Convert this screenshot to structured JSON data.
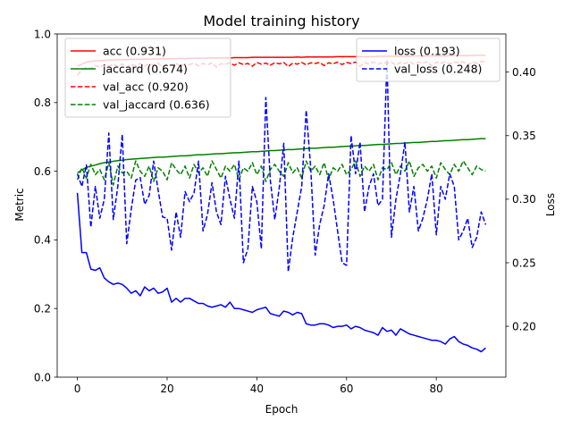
{
  "chart_data": {
    "type": "line",
    "title": "Model training history",
    "xlabel": "Epoch",
    "ylabel": "Metric",
    "ylabel_right": "Loss",
    "xlim": [
      -4.5,
      95.5
    ],
    "ylim": [
      0.0,
      1.0
    ],
    "ylim_right": [
      0.16,
      0.43
    ],
    "x_ticks": [
      0,
      20,
      40,
      60,
      80
    ],
    "y_ticks": [
      0.0,
      0.2,
      0.4,
      0.6,
      0.8,
      1.0
    ],
    "y_tick_labels": [
      "0.0",
      "0.2",
      "0.4",
      "0.6",
      "0.8",
      "1.0"
    ],
    "y_ticks_right": [
      0.2,
      0.25,
      0.3,
      0.35,
      0.4
    ],
    "y_tick_labels_right": [
      "0.20",
      "0.25",
      "0.30",
      "0.35",
      "0.40"
    ],
    "grid": false,
    "legend_left": {
      "placement": "upper-left",
      "entries": [
        "acc (0.931)",
        "jaccard (0.674)",
        "val_acc (0.920)",
        "val_jaccard (0.636)"
      ]
    },
    "legend_right": {
      "placement": "upper-right",
      "entries": [
        "loss (0.193)",
        "val_loss (0.248)"
      ]
    },
    "series": [
      {
        "name": "acc (0.931)",
        "axis": "left",
        "color": "#ff0000",
        "style": "solid",
        "values": [
          0.906,
          0.912,
          0.918,
          0.92,
          0.922,
          0.922,
          0.923,
          0.924,
          0.924,
          0.925,
          0.925,
          0.925,
          0.926,
          0.926,
          0.926,
          0.927,
          0.926,
          0.927,
          0.927,
          0.928,
          0.927,
          0.928,
          0.928,
          0.929,
          0.928,
          0.929,
          0.929,
          0.929,
          0.929,
          0.93,
          0.93,
          0.93,
          0.93,
          0.93,
          0.93,
          0.931,
          0.931,
          0.931,
          0.931,
          0.932,
          0.932,
          0.932,
          0.932,
          0.932,
          0.932,
          0.932,
          0.932,
          0.932,
          0.932,
          0.933,
          0.932,
          0.933,
          0.933,
          0.933,
          0.933,
          0.933,
          0.933,
          0.933,
          0.934,
          0.934,
          0.934,
          0.934,
          0.934,
          0.934,
          0.934,
          0.934,
          0.934,
          0.935,
          0.935,
          0.935,
          0.935,
          0.935,
          0.935,
          0.935,
          0.935,
          0.936,
          0.936,
          0.936,
          0.936,
          0.936,
          0.936,
          0.936,
          0.936,
          0.937,
          0.937,
          0.937,
          0.937,
          0.937,
          0.937,
          0.938,
          0.938,
          0.937
        ]
      },
      {
        "name": "jaccard (0.674)",
        "axis": "left",
        "color": "#008000",
        "style": "solid",
        "values": [
          0.595,
          0.604,
          0.611,
          0.615,
          0.618,
          0.622,
          0.625,
          0.627,
          0.629,
          0.631,
          0.632,
          0.634,
          0.635,
          0.636,
          0.637,
          0.638,
          0.639,
          0.64,
          0.641,
          0.641,
          0.642,
          0.643,
          0.644,
          0.645,
          0.645,
          0.646,
          0.647,
          0.648,
          0.648,
          0.649,
          0.65,
          0.651,
          0.651,
          0.652,
          0.653,
          0.654,
          0.654,
          0.655,
          0.656,
          0.657,
          0.657,
          0.658,
          0.659,
          0.66,
          0.66,
          0.661,
          0.662,
          0.663,
          0.663,
          0.664,
          0.665,
          0.666,
          0.667,
          0.667,
          0.668,
          0.669,
          0.67,
          0.67,
          0.671,
          0.672,
          0.673,
          0.673,
          0.674,
          0.675,
          0.675,
          0.676,
          0.677,
          0.678,
          0.678,
          0.679,
          0.68,
          0.681,
          0.681,
          0.682,
          0.683,
          0.684,
          0.684,
          0.685,
          0.686,
          0.687,
          0.687,
          0.688,
          0.689,
          0.689,
          0.69,
          0.691,
          0.692,
          0.692,
          0.693,
          0.694,
          0.695,
          0.695
        ]
      },
      {
        "name": "val_acc (0.920)",
        "axis": "left",
        "color": "#ff0000",
        "style": "dashed",
        "values": [
          0.88,
          0.895,
          0.902,
          0.899,
          0.908,
          0.903,
          0.91,
          0.906,
          0.912,
          0.905,
          0.913,
          0.902,
          0.911,
          0.908,
          0.914,
          0.906,
          0.913,
          0.909,
          0.915,
          0.904,
          0.912,
          0.91,
          0.914,
          0.905,
          0.913,
          0.911,
          0.915,
          0.907,
          0.914,
          0.91,
          0.916,
          0.903,
          0.913,
          0.912,
          0.915,
          0.909,
          0.916,
          0.911,
          0.914,
          0.906,
          0.917,
          0.912,
          0.915,
          0.909,
          0.916,
          0.913,
          0.917,
          0.905,
          0.915,
          0.912,
          0.917,
          0.91,
          0.916,
          0.914,
          0.917,
          0.908,
          0.916,
          0.913,
          0.918,
          0.911,
          0.917,
          0.914,
          0.918,
          0.906,
          0.917,
          0.913,
          0.918,
          0.912,
          0.917,
          0.915,
          0.918,
          0.909,
          0.917,
          0.914,
          0.919,
          0.912,
          0.918,
          0.915,
          0.919,
          0.907,
          0.918,
          0.914,
          0.919,
          0.913,
          0.918,
          0.916,
          0.919,
          0.91,
          0.918,
          0.915,
          0.92,
          0.918
        ]
      },
      {
        "name": "val_jaccard (0.636)",
        "axis": "left",
        "color": "#008000",
        "style": "dashed",
        "values": [
          0.575,
          0.61,
          0.58,
          0.62,
          0.59,
          0.605,
          0.575,
          0.625,
          0.56,
          0.615,
          0.595,
          0.6,
          0.58,
          0.63,
          0.6,
          0.585,
          0.615,
          0.57,
          0.61,
          0.6,
          0.575,
          0.625,
          0.605,
          0.59,
          0.615,
          0.58,
          0.62,
          0.595,
          0.61,
          0.585,
          0.63,
          0.605,
          0.58,
          0.615,
          0.6,
          0.62,
          0.575,
          0.61,
          0.6,
          0.625,
          0.59,
          0.615,
          0.57,
          0.605,
          0.62,
          0.6,
          0.585,
          0.625,
          0.595,
          0.61,
          0.58,
          0.63,
          0.6,
          0.615,
          0.59,
          0.625,
          0.575,
          0.61,
          0.6,
          0.62,
          0.59,
          0.605,
          0.63,
          0.585,
          0.615,
          0.6,
          0.62,
          0.575,
          0.61,
          0.605,
          0.625,
          0.59,
          0.615,
          0.6,
          0.63,
          0.585,
          0.61,
          0.62,
          0.6,
          0.615,
          0.58,
          0.625,
          0.605,
          0.59,
          0.62,
          0.6,
          0.63,
          0.61,
          0.59,
          0.615,
          0.605,
          0.6
        ]
      },
      {
        "name": "loss (0.193)",
        "axis": "right",
        "color": "#0000ff",
        "style": "solid",
        "values": [
          0.305,
          0.258,
          0.258,
          0.245,
          0.244,
          0.246,
          0.238,
          0.235,
          0.233,
          0.234,
          0.233,
          0.23,
          0.226,
          0.228,
          0.224,
          0.231,
          0.228,
          0.23,
          0.226,
          0.227,
          0.23,
          0.219,
          0.222,
          0.219,
          0.222,
          0.222,
          0.22,
          0.218,
          0.218,
          0.216,
          0.215,
          0.216,
          0.217,
          0.215,
          0.219,
          0.214,
          0.214,
          0.213,
          0.212,
          0.211,
          0.213,
          0.214,
          0.215,
          0.21,
          0.209,
          0.208,
          0.212,
          0.211,
          0.209,
          0.211,
          0.21,
          0.202,
          0.201,
          0.201,
          0.202,
          0.202,
          0.201,
          0.199,
          0.2,
          0.2,
          0.201,
          0.198,
          0.2,
          0.199,
          0.197,
          0.196,
          0.195,
          0.193,
          0.199,
          0.196,
          0.197,
          0.193,
          0.198,
          0.196,
          0.194,
          0.193,
          0.192,
          0.191,
          0.19,
          0.189,
          0.189,
          0.188,
          0.186,
          0.19,
          0.192,
          0.188,
          0.186,
          0.185,
          0.183,
          0.182,
          0.18,
          0.183
        ]
      },
      {
        "name": "val_loss (0.248)",
        "axis": "right",
        "color": "#0000ff",
        "style": "dashed",
        "values": [
          0.32,
          0.31,
          0.327,
          0.278,
          0.31,
          0.285,
          0.3,
          0.352,
          0.284,
          0.31,
          0.351,
          0.265,
          0.292,
          0.315,
          0.317,
          0.296,
          0.303,
          0.33,
          0.307,
          0.286,
          0.285,
          0.26,
          0.29,
          0.27,
          0.306,
          0.298,
          0.305,
          0.33,
          0.275,
          0.288,
          0.313,
          0.29,
          0.28,
          0.318,
          0.3,
          0.285,
          0.33,
          0.25,
          0.261,
          0.31,
          0.298,
          0.261,
          0.38,
          0.315,
          0.284,
          0.309,
          0.344,
          0.243,
          0.27,
          0.29,
          0.31,
          0.37,
          0.325,
          0.256,
          0.28,
          0.295,
          0.32,
          0.3,
          0.275,
          0.25,
          0.248,
          0.35,
          0.32,
          0.345,
          0.29,
          0.31,
          0.32,
          0.295,
          0.3,
          0.41,
          0.27,
          0.3,
          0.32,
          0.345,
          0.29,
          0.31,
          0.275,
          0.285,
          0.3,
          0.32,
          0.272,
          0.31,
          0.3,
          0.32,
          0.31,
          0.268,
          0.275,
          0.285,
          0.262,
          0.27,
          0.29,
          0.28
        ]
      }
    ]
  }
}
